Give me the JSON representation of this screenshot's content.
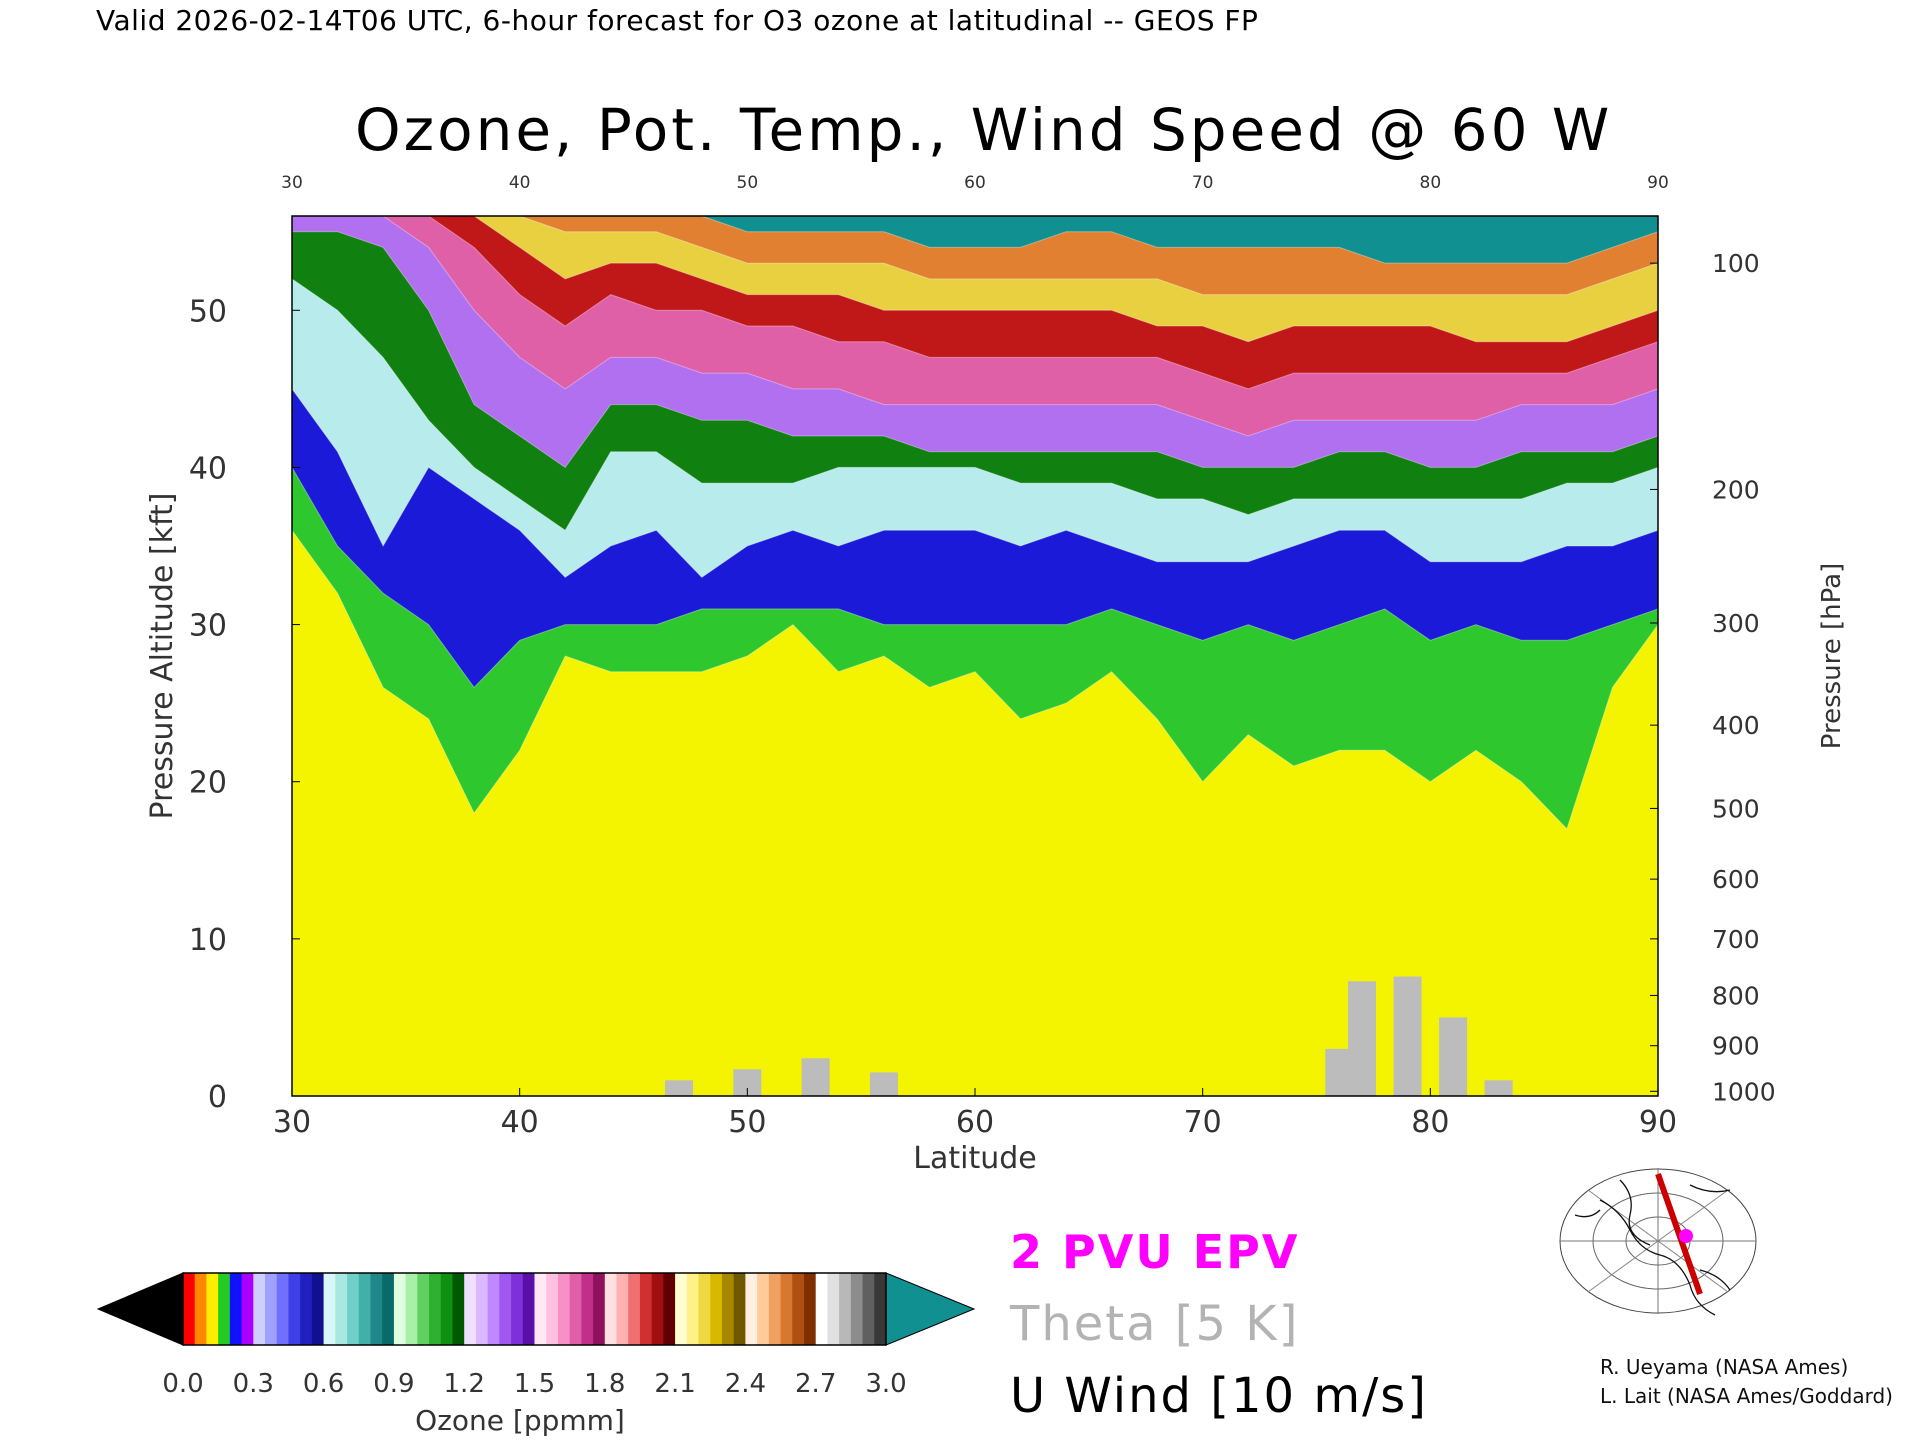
{
  "header": {
    "valid_text": "Valid 2026-02-14T06 UTC, 6-hour forecast for O3 ozone at latitudinal -- GEOS FP",
    "title": "Ozone, Pot. Temp., Wind Speed @ 60 W"
  },
  "chart_data": {
    "type": "heatmap",
    "title": "Ozone, Pot. Temp., Wind Speed @ 60 W",
    "xlabel": "Latitude",
    "ylabel": "Pressure Altitude [kft]",
    "y2label": "Pressure [hPa]",
    "xlim": [
      30,
      90
    ],
    "ylim": [
      0,
      56
    ],
    "x_ticks": [
      "30",
      "40",
      "50",
      "60",
      "70",
      "80",
      "90"
    ],
    "y_ticks": [
      "0",
      "10",
      "20",
      "30",
      "40",
      "50"
    ],
    "y2_ticks": [
      {
        "label": "100",
        "alt": 53.0
      },
      {
        "label": "200",
        "alt": 38.6
      },
      {
        "label": "300",
        "alt": 30.1
      },
      {
        "label": "400",
        "alt": 23.6
      },
      {
        "label": "500",
        "alt": 18.3
      },
      {
        "label": "600",
        "alt": 13.8
      },
      {
        "label": "700",
        "alt": 10.0
      },
      {
        "label": "800",
        "alt": 6.4
      },
      {
        "label": "900",
        "alt": 3.2
      },
      {
        "label": "1000",
        "alt": 0.3
      }
    ],
    "x_approx": [
      30,
      32,
      34,
      36,
      38,
      40,
      42,
      44,
      46,
      48,
      50,
      52,
      54,
      56,
      58,
      60,
      62,
      64,
      66,
      68,
      70,
      72,
      74,
      76,
      78,
      80,
      82,
      84,
      86,
      88,
      90
    ],
    "ozone_level_boundaries_kft": [
      {
        "ppmm": 0.3,
        "alt": [
          36,
          32,
          26,
          24,
          18,
          22,
          28,
          27,
          27,
          27,
          28,
          30,
          27,
          28,
          26,
          27,
          24,
          25,
          27,
          24,
          20,
          23,
          21,
          22,
          22,
          20,
          22,
          20,
          17,
          26,
          30
        ]
      },
      {
        "ppmm": 0.6,
        "alt": [
          40,
          35,
          32,
          30,
          26,
          29,
          30,
          30,
          30,
          31,
          31,
          31,
          31,
          30,
          30,
          30,
          30,
          30,
          31,
          30,
          29,
          30,
          29,
          30,
          31,
          29,
          30,
          29,
          29,
          30,
          31
        ]
      },
      {
        "ppmm": 0.9,
        "alt": [
          45,
          41,
          35,
          40,
          38,
          36,
          33,
          35,
          36,
          33,
          35,
          36,
          35,
          36,
          36,
          36,
          35,
          36,
          35,
          34,
          34,
          34,
          35,
          36,
          36,
          34,
          34,
          34,
          35,
          35,
          36
        ]
      },
      {
        "ppmm": 1.2,
        "alt": [
          52,
          50,
          47,
          43,
          40,
          38,
          36,
          41,
          41,
          39,
          39,
          39,
          40,
          40,
          40,
          40,
          39,
          39,
          39,
          38,
          38,
          37,
          38,
          38,
          38,
          38,
          38,
          38,
          39,
          39,
          40
        ]
      },
      {
        "ppmm": 1.5,
        "alt": [
          55,
          55,
          54,
          50,
          44,
          42,
          40,
          44,
          44,
          43,
          43,
          42,
          42,
          42,
          41,
          41,
          41,
          41,
          41,
          41,
          40,
          40,
          40,
          41,
          41,
          40,
          40,
          41,
          41,
          41,
          42
        ]
      },
      {
        "ppmm": 1.8,
        "alt": [
          56,
          56,
          56,
          54,
          50,
          47,
          45,
          47,
          47,
          46,
          46,
          45,
          45,
          44,
          44,
          44,
          44,
          44,
          44,
          44,
          43,
          42,
          43,
          43,
          43,
          43,
          43,
          44,
          44,
          44,
          45
        ]
      },
      {
        "ppmm": 2.1,
        "alt": [
          56,
          56,
          56,
          56,
          54,
          51,
          49,
          51,
          50,
          50,
          49,
          49,
          48,
          48,
          47,
          47,
          47,
          47,
          47,
          47,
          46,
          45,
          46,
          46,
          46,
          46,
          46,
          46,
          46,
          47,
          48
        ]
      },
      {
        "ppmm": 2.4,
        "alt": [
          56,
          56,
          56,
          56,
          56,
          54,
          52,
          53,
          53,
          52,
          51,
          51,
          51,
          50,
          50,
          50,
          50,
          50,
          50,
          49,
          49,
          48,
          49,
          49,
          49,
          49,
          48,
          48,
          48,
          49,
          50
        ]
      },
      {
        "ppmm": 2.7,
        "alt": [
          56,
          56,
          56,
          56,
          56,
          56,
          55,
          55,
          55,
          54,
          53,
          53,
          53,
          53,
          52,
          52,
          52,
          52,
          52,
          52,
          51,
          51,
          51,
          51,
          51,
          51,
          51,
          51,
          51,
          52,
          53
        ]
      },
      {
        "ppmm": 3.0,
        "alt": [
          56,
          56,
          56,
          56,
          56,
          56,
          56,
          56,
          56,
          56,
          55,
          55,
          55,
          55,
          54,
          54,
          54,
          55,
          55,
          54,
          54,
          54,
          54,
          54,
          53,
          53,
          53,
          53,
          53,
          54,
          55
        ]
      }
    ],
    "surface_terrain_kft": [
      {
        "lat": 47,
        "alt": 1.0
      },
      {
        "lat": 50,
        "alt": 1.7
      },
      {
        "lat": 53,
        "alt": 2.4
      },
      {
        "lat": 56,
        "alt": 1.5
      },
      {
        "lat": 76,
        "alt": 3.0
      },
      {
        "lat": 77,
        "alt": 7.3
      },
      {
        "lat": 79,
        "alt": 7.6
      },
      {
        "lat": 81,
        "alt": 5.0
      },
      {
        "lat": 83,
        "alt": 1.0
      }
    ],
    "colorbar": {
      "label": "Ozone [ppmm]",
      "tick_labels": [
        "0.0",
        "0.3",
        "0.6",
        "0.9",
        "1.2",
        "1.5",
        "1.8",
        "2.1",
        "2.4",
        "2.7",
        "3.0"
      ],
      "min": 0.0,
      "max": 3.0,
      "colors": {
        "under": "#000000",
        "over": "#109090",
        "bands": [
          [
            "#ff0000",
            "#ff8800",
            "#ffee00",
            "#22cc22",
            "#1111ff",
            "#aa00ff",
            "#cfcfff",
            "#a0a0ff",
            "#7070ff",
            "#4040e8",
            "#2020c0",
            "#101090"
          ],
          [
            "#d8f8f8",
            "#a8e8e0",
            "#70d0c8",
            "#40b0a8",
            "#208888",
            "#0a6a6a"
          ],
          [
            "#e0ffe0",
            "#a8f0a8",
            "#60d060",
            "#30b030",
            "#109010",
            "#005800"
          ],
          [
            "#f0e0ff",
            "#dcb8ff",
            "#c088ff",
            "#a058f0",
            "#8030d8",
            "#5a10a8"
          ],
          [
            "#ffe8f4",
            "#ffc0e0",
            "#f890c8",
            "#e060a8",
            "#c03088",
            "#901060"
          ],
          [
            "#ffe0e0",
            "#ffb0b0",
            "#f07070",
            "#d03030",
            "#a01010",
            "#600000"
          ],
          [
            "#ffffd0",
            "#fff088",
            "#f0d840",
            "#d8b800",
            "#a88800",
            "#705800"
          ],
          [
            "#fff0e0",
            "#ffcc99",
            "#f0a060",
            "#d87830",
            "#b05010",
            "#803000"
          ],
          [
            "#ffffff",
            "#e0e0e0",
            "#b8b8b8",
            "#8c8c8c",
            "#606060",
            "#383838"
          ]
        ]
      }
    },
    "legend": [
      {
        "text": "2 PVU EPV",
        "color": "#ff00ff"
      },
      {
        "text": "Theta [5 K]",
        "color": "#b3b3b3"
      },
      {
        "text": "U Wind [10 m/s]",
        "color": "#000000"
      }
    ],
    "legend_placement": "bottom-right",
    "grid": false
  },
  "credits": [
    "R. Ueyama (NASA Ames)",
    "L. Lait (NASA Ames/Goddard)"
  ],
  "inset_map": {
    "icon": "polar-map-icon"
  }
}
